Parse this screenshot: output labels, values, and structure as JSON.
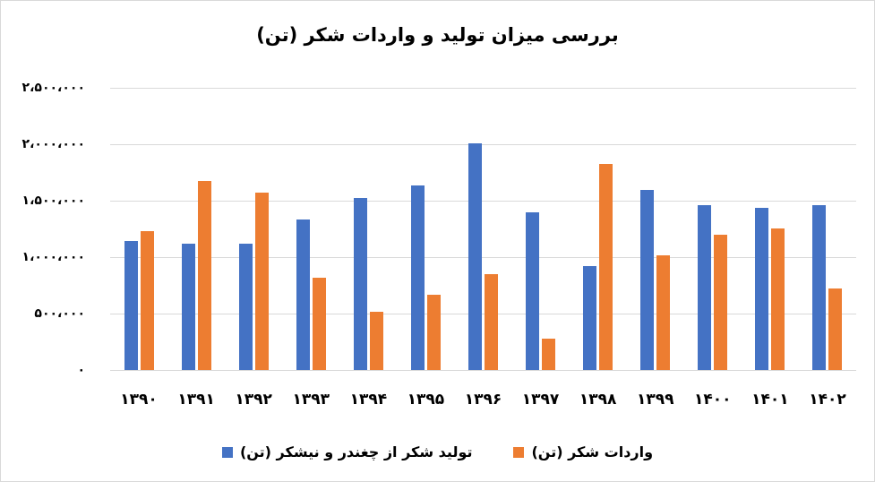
{
  "chart_data": {
    "type": "bar",
    "title": "بررسی میزان تولید و واردات شکر (تن)",
    "xlabel": "",
    "ylabel": "",
    "ylim": [
      0,
      2500000
    ],
    "grid": true,
    "legend_position": "bottom",
    "yticks": [
      0,
      500000,
      1000000,
      1500000,
      2000000,
      2500000
    ],
    "ytick_labels": [
      "۰",
      "۵۰۰،۰۰۰",
      "۱،۰۰۰،۰۰۰",
      "۱،۵۰۰،۰۰۰",
      "۲،۰۰۰،۰۰۰",
      "۲،۵۰۰،۰۰۰"
    ],
    "categories": [
      "1390",
      "1391",
      "1392",
      "1393",
      "1394",
      "1395",
      "1396",
      "1397",
      "1398",
      "1399",
      "1400",
      "1401",
      "1402"
    ],
    "category_labels": [
      "۱۳۹۰",
      "۱۳۹۱",
      "۱۳۹۲",
      "۱۳۹۳",
      "۱۳۹۴",
      "۱۳۹۵",
      "۱۳۹۶",
      "۱۳۹۷",
      "۱۳۹۸",
      "۱۳۹۹",
      "۱۴۰۰",
      "۱۴۰۱",
      "۱۴۰۲"
    ],
    "series": [
      {
        "name": "تولید شکر از چغندر و نیشکر (تن)",
        "color": "#4472c4",
        "values": [
          1143000,
          1119000,
          1119000,
          1333000,
          1524000,
          1635000,
          2008000,
          1397000,
          921000,
          1595000,
          1460000,
          1437000,
          1460000
        ]
      },
      {
        "name": "واردات شکر (تن)",
        "color": "#ed7d31",
        "values": [
          1230000,
          1675000,
          1571000,
          817000,
          516000,
          667000,
          849000,
          278000,
          1825000,
          1016000,
          1198000,
          1254000,
          722000
        ]
      }
    ]
  }
}
